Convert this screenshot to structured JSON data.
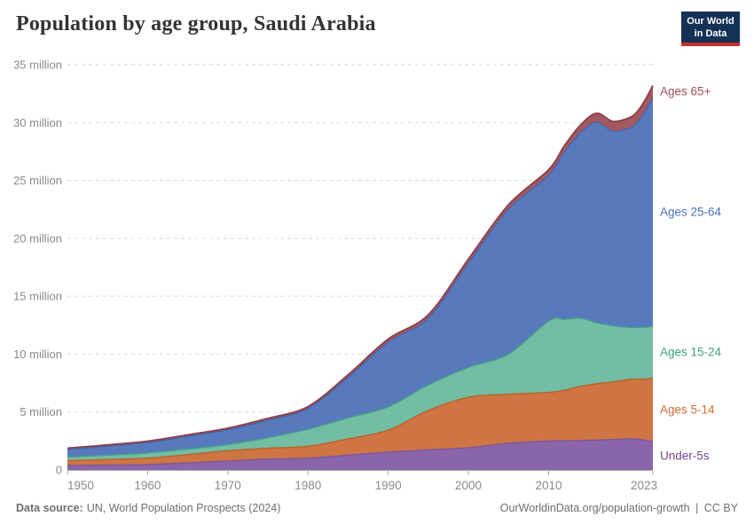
{
  "header": {
    "title": "Population by age group, Saudi Arabia"
  },
  "logo": {
    "line1": "Our World",
    "line2": "in Data",
    "bg_color": "#143156",
    "accent_color": "#c5302d"
  },
  "chart_data": {
    "type": "area",
    "stacked": true,
    "title": "Population by age group, Saudi Arabia",
    "xlabel": "",
    "ylabel": "",
    "unit": "million people",
    "grid": "dashed-horizontal",
    "legend_position": "right-inline",
    "xlim": [
      1950,
      2023
    ],
    "ylim": [
      0,
      35
    ],
    "x": [
      1950,
      1955,
      1960,
      1965,
      1970,
      1975,
      1980,
      1985,
      1990,
      1995,
      2000,
      2005,
      2010,
      2012,
      2014,
      2016,
      2018,
      2020,
      2021,
      2022,
      2023
    ],
    "series": [
      {
        "name": "Under-5s",
        "fill": "#8b65a9",
        "line": "#7a539e",
        "label_color": "#6d4796",
        "values": [
          0.38,
          0.42,
          0.46,
          0.61,
          0.77,
          0.94,
          1.02,
          1.28,
          1.54,
          1.74,
          1.92,
          2.31,
          2.5,
          2.52,
          2.55,
          2.58,
          2.63,
          2.69,
          2.67,
          2.57,
          2.45
        ]
      },
      {
        "name": "Ages 5-14",
        "fill": "#cf7543",
        "line": "#b75f28",
        "label_color": "#ce6d33",
        "values": [
          0.42,
          0.49,
          0.56,
          0.71,
          0.9,
          0.94,
          1.03,
          1.41,
          1.9,
          3.4,
          4.36,
          4.23,
          4.2,
          4.38,
          4.68,
          4.87,
          4.97,
          5.13,
          5.18,
          5.28,
          5.5
        ]
      },
      {
        "name": "Ages 15-24",
        "fill": "#72bda3",
        "line": "#47a287",
        "label_color": "#3fa081",
        "values": [
          0.3,
          0.36,
          0.44,
          0.48,
          0.51,
          0.9,
          1.46,
          1.8,
          2.0,
          2.2,
          2.57,
          3.46,
          6.15,
          6.1,
          5.87,
          5.25,
          4.85,
          4.48,
          4.45,
          4.45,
          4.45
        ]
      },
      {
        "name": "Ages 25-64",
        "fill": "#587abd",
        "line": "#4067ac",
        "label_color": "#4b73b8",
        "values": [
          0.68,
          0.78,
          0.9,
          1.1,
          1.28,
          1.52,
          1.79,
          3.51,
          5.6,
          5.76,
          9.0,
          12.5,
          12.6,
          14.48,
          16.05,
          17.32,
          16.8,
          17.2,
          17.68,
          18.64,
          19.8
        ]
      },
      {
        "name": "Ages 65+",
        "fill": "#a45960",
        "line": "#8c434e",
        "label_color": "#9e4e5a",
        "values": [
          0.1,
          0.11,
          0.12,
          0.13,
          0.14,
          0.15,
          0.17,
          0.21,
          0.26,
          0.3,
          0.35,
          0.4,
          0.48,
          0.55,
          0.65,
          0.78,
          0.85,
          0.9,
          0.92,
          0.96,
          1.0
        ]
      }
    ],
    "yticks": [
      {
        "value": 0,
        "label": "0"
      },
      {
        "value": 5,
        "label": "5 million"
      },
      {
        "value": 10,
        "label": "10 million"
      },
      {
        "value": 15,
        "label": "15 million"
      },
      {
        "value": 20,
        "label": "20 million"
      },
      {
        "value": 25,
        "label": "25 million"
      },
      {
        "value": 30,
        "label": "30 million"
      },
      {
        "value": 35,
        "label": "35 million"
      }
    ],
    "xticks": [
      {
        "value": 1950,
        "label": "1950"
      },
      {
        "value": 1960,
        "label": "1960"
      },
      {
        "value": 1970,
        "label": "1970"
      },
      {
        "value": 1980,
        "label": "1980"
      },
      {
        "value": 1990,
        "label": "1990"
      },
      {
        "value": 2000,
        "label": "2000"
      },
      {
        "value": 2010,
        "label": "2010"
      },
      {
        "value": 2023,
        "label": "2023"
      }
    ]
  },
  "footer": {
    "source_label": "Data source:",
    "source": "UN, World Population Prospects (2024)",
    "link": "OurWorldinData.org/population-growth",
    "divider": "|",
    "license": "CC BY"
  }
}
